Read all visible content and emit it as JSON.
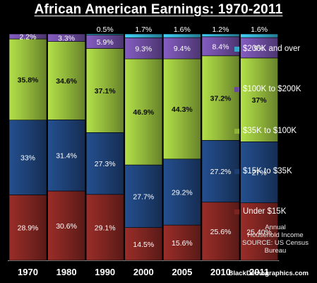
{
  "chart_data": {
    "type": "bar",
    "stacked": true,
    "title": "African American Earnings: 1970-2011",
    "categories": [
      "1970",
      "1980",
      "1990",
      "2000",
      "2005",
      "2010",
      "2011"
    ],
    "series": [
      {
        "name": "Under $15K",
        "color": "#7b2420",
        "values": [
          28.9,
          30.6,
          29.1,
          14.5,
          15.6,
          25.6,
          25.4
        ],
        "labels": [
          "28.9%",
          "30.6%",
          "29.1%",
          "14.5%",
          "15.6%",
          "25.6%",
          "25.40%"
        ]
      },
      {
        "name": "$15K to $35K",
        "color": "#1d3f72",
        "values": [
          33,
          31.4,
          27.3,
          27.7,
          29.2,
          27.2,
          27
        ],
        "labels": [
          "33%",
          "31.4%",
          "27.3%",
          "27.7%",
          "29.2%",
          "27.2%",
          "27%"
        ]
      },
      {
        "name": "$35K to $100K",
        "color": "#8fb43a",
        "values": [
          35.8,
          34.6,
          37.1,
          46.9,
          44.3,
          37.2,
          37
        ],
        "labels": [
          "35.8%",
          "34.6%",
          "37.1%",
          "46.9%",
          "44.3%",
          "37.2%",
          "37%"
        ]
      },
      {
        "name": "$100K to $200K",
        "color": "#6a4a9b",
        "values": [
          2.2,
          3.3,
          5.9,
          9.3,
          9.4,
          8.4,
          9
        ],
        "labels": [
          "2.2%",
          "3.3%",
          "5.9%",
          "9.3%",
          "9.4%",
          "8.4%",
          "9%"
        ]
      },
      {
        "name": "$200K and over",
        "color": "#34a9c8",
        "values": [
          0,
          0,
          0.5,
          1.7,
          1.6,
          1.2,
          1.6
        ],
        "labels": [
          "",
          "",
          "0.5%",
          "1.7%",
          "1.6%",
          "1.2%",
          "1.6%"
        ]
      }
    ],
    "ylim": [
      0,
      100
    ],
    "grid": false,
    "legend_position": "right"
  },
  "note_lines": [
    "Annual",
    "Household Income",
    "SOURCE: US Census",
    "Bureau"
  ],
  "source_site": "BlackDemographics.com"
}
